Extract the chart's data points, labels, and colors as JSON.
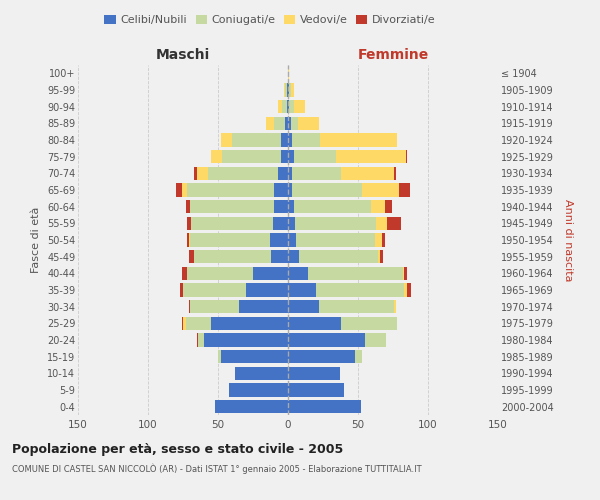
{
  "age_groups": [
    "0-4",
    "5-9",
    "10-14",
    "15-19",
    "20-24",
    "25-29",
    "30-34",
    "35-39",
    "40-44",
    "45-49",
    "50-54",
    "55-59",
    "60-64",
    "65-69",
    "70-74",
    "75-79",
    "80-84",
    "85-89",
    "90-94",
    "95-99",
    "100+"
  ],
  "birth_years": [
    "2000-2004",
    "1995-1999",
    "1990-1994",
    "1985-1989",
    "1980-1984",
    "1975-1979",
    "1970-1974",
    "1965-1969",
    "1960-1964",
    "1955-1959",
    "1950-1954",
    "1945-1949",
    "1940-1944",
    "1935-1939",
    "1930-1934",
    "1925-1929",
    "1920-1924",
    "1915-1919",
    "1910-1914",
    "1905-1909",
    "≤ 1904"
  ],
  "male": {
    "celibi": [
      52,
      42,
      38,
      48,
      60,
      55,
      35,
      30,
      25,
      12,
      13,
      11,
      10,
      10,
      7,
      5,
      5,
      2,
      1,
      1,
      0
    ],
    "coniugati": [
      0,
      0,
      0,
      2,
      4,
      18,
      35,
      45,
      47,
      55,
      57,
      58,
      60,
      62,
      50,
      42,
      35,
      8,
      3,
      1,
      0
    ],
    "vedovi": [
      0,
      0,
      0,
      0,
      0,
      2,
      0,
      0,
      0,
      0,
      1,
      0,
      0,
      4,
      8,
      8,
      8,
      6,
      3,
      1,
      0
    ],
    "divorziati": [
      0,
      0,
      0,
      0,
      1,
      1,
      1,
      2,
      4,
      4,
      1,
      3,
      3,
      4,
      2,
      0,
      0,
      0,
      0,
      0,
      0
    ]
  },
  "female": {
    "nubili": [
      52,
      40,
      37,
      48,
      55,
      38,
      22,
      20,
      14,
      8,
      6,
      5,
      4,
      3,
      3,
      4,
      3,
      2,
      1,
      1,
      0
    ],
    "coniugate": [
      0,
      0,
      0,
      5,
      15,
      40,
      54,
      63,
      68,
      56,
      56,
      58,
      55,
      50,
      35,
      30,
      20,
      5,
      3,
      1,
      0
    ],
    "vedove": [
      0,
      0,
      0,
      0,
      0,
      0,
      1,
      2,
      1,
      2,
      5,
      8,
      10,
      26,
      38,
      50,
      55,
      15,
      8,
      2,
      1
    ],
    "divorziate": [
      0,
      0,
      0,
      0,
      0,
      0,
      0,
      3,
      2,
      2,
      2,
      10,
      5,
      8,
      1,
      1,
      0,
      0,
      0,
      0,
      0
    ]
  },
  "colors": {
    "celibi": "#4472c4",
    "coniugati": "#c5d9a0",
    "vedovi": "#ffd966",
    "divorziati": "#c0392b"
  },
  "title": "Popolazione per età, sesso e stato civile - 2005",
  "subtitle": "COMUNE DI CASTEL SAN NICCOLÒ (AR) - Dati ISTAT 1° gennaio 2005 - Elaborazione TUTTITALIA.IT",
  "xlabel_left": "Maschi",
  "xlabel_right": "Femmine",
  "ylabel_left": "Fasce di età",
  "ylabel_right": "Anni di nascita",
  "xlim": 150,
  "bg_color": "#f0f0f0",
  "legend_labels": [
    "Celibi/Nubili",
    "Coniugati/e",
    "Vedovi/e",
    "Divorziati/e"
  ]
}
